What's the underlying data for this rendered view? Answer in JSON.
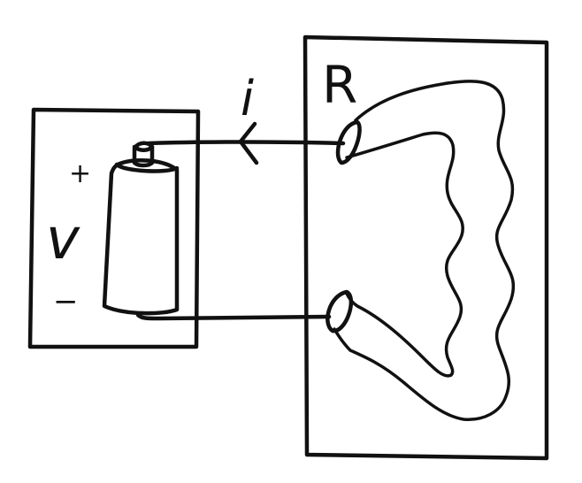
{
  "source": {
    "label": "v",
    "plus": "+",
    "minus": "−"
  },
  "current": {
    "label": "i"
  },
  "resistor": {
    "label": "R"
  },
  "colors": {
    "ink": "#111111",
    "background": "#ffffff"
  }
}
